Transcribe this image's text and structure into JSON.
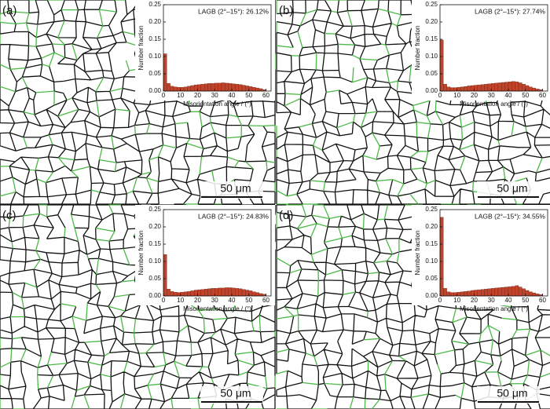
{
  "chart_data": [
    {
      "type": "histogram",
      "panel_label": "(a)",
      "annotation": "LAGB (2°–15°): 26.12%",
      "scale_bar": "50 μm",
      "xlabel": "Misorientation angle / (°)",
      "ylabel": "Number fraction",
      "color": "#c0432a",
      "bins": [
        0,
        2,
        4,
        6,
        8,
        10,
        12,
        14,
        16,
        18,
        20,
        22,
        24,
        26,
        28,
        30,
        32,
        34,
        36,
        38,
        40,
        42,
        44,
        46,
        48,
        50,
        52,
        54,
        56,
        58,
        60
      ],
      "counts": [
        0.108,
        0.022,
        0.014,
        0.012,
        0.011,
        0.011,
        0.012,
        0.014,
        0.016,
        0.018,
        0.019,
        0.02,
        0.021,
        0.022,
        0.022,
        0.023,
        0.023,
        0.024,
        0.023,
        0.022,
        0.021,
        0.02,
        0.019,
        0.017,
        0.015,
        0.013,
        0.011,
        0.009,
        0.007,
        0.004
      ],
      "xlim": [
        0,
        63
      ],
      "ylim": [
        0,
        0.25
      ],
      "xticks": [
        0,
        10,
        20,
        30,
        40,
        50,
        60
      ],
      "yticks": [
        {
          "value": 0,
          "label": "0.00"
        },
        {
          "value": 0.05,
          "label": "0.05"
        },
        {
          "value": 0.1,
          "label": "0.10"
        },
        {
          "value": 0.15,
          "label": "0.15"
        },
        {
          "value": 0.2,
          "label": "0.20"
        },
        {
          "value": 0.25,
          "label": "0.25"
        }
      ]
    },
    {
      "type": "histogram",
      "panel_label": "(b)",
      "annotation": "LAGB (2°–15°): 27.74%",
      "scale_bar": "50 μm",
      "xlabel": "Misorientation angle / (°)",
      "ylabel": "Number fraction",
      "color": "#c0432a",
      "bins": [
        0,
        2,
        4,
        6,
        8,
        10,
        12,
        14,
        16,
        18,
        20,
        22,
        24,
        26,
        28,
        30,
        32,
        34,
        36,
        38,
        40,
        42,
        44,
        46,
        48,
        50,
        52,
        54,
        56,
        58,
        60
      ],
      "counts": [
        0.148,
        0.02,
        0.012,
        0.01,
        0.01,
        0.011,
        0.012,
        0.013,
        0.015,
        0.016,
        0.017,
        0.018,
        0.019,
        0.02,
        0.021,
        0.022,
        0.023,
        0.024,
        0.025,
        0.026,
        0.027,
        0.028,
        0.027,
        0.024,
        0.02,
        0.016,
        0.012,
        0.009,
        0.006,
        0.004
      ],
      "xlim": [
        0,
        63
      ],
      "ylim": [
        0,
        0.25
      ],
      "xticks": [
        0,
        10,
        20,
        30,
        40,
        50,
        60
      ],
      "yticks": [
        {
          "value": 0,
          "label": "0.00"
        },
        {
          "value": 0.05,
          "label": "0.05"
        },
        {
          "value": 0.1,
          "label": "0.10"
        },
        {
          "value": 0.15,
          "label": "0.15"
        },
        {
          "value": 0.2,
          "label": "0.20"
        },
        {
          "value": 0.25,
          "label": "0.25"
        }
      ]
    },
    {
      "type": "histogram",
      "panel_label": "(c)",
      "annotation": "LAGB (2°–15°): 24.83%",
      "scale_bar": "50 μm",
      "xlabel": "Misorientation angle / (°)",
      "ylabel": "Number fraction",
      "color": "#c0432a",
      "bins": [
        0,
        2,
        4,
        6,
        8,
        10,
        12,
        14,
        16,
        18,
        20,
        22,
        24,
        26,
        28,
        30,
        32,
        34,
        36,
        38,
        40,
        42,
        44,
        46,
        48,
        50,
        52,
        54,
        56,
        58,
        60
      ],
      "counts": [
        0.12,
        0.02,
        0.013,
        0.011,
        0.01,
        0.011,
        0.012,
        0.013,
        0.015,
        0.017,
        0.018,
        0.019,
        0.02,
        0.021,
        0.022,
        0.022,
        0.023,
        0.023,
        0.024,
        0.024,
        0.023,
        0.022,
        0.021,
        0.019,
        0.017,
        0.015,
        0.012,
        0.01,
        0.007,
        0.005
      ],
      "xlim": [
        0,
        63
      ],
      "ylim": [
        0,
        0.25
      ],
      "xticks": [
        0,
        10,
        20,
        30,
        40,
        50,
        60
      ],
      "yticks": [
        {
          "value": 0,
          "label": "0.00"
        },
        {
          "value": 0.05,
          "label": "0.05"
        },
        {
          "value": 0.1,
          "label": "0.10"
        },
        {
          "value": 0.15,
          "label": "0.15"
        },
        {
          "value": 0.2,
          "label": "0.20"
        },
        {
          "value": 0.25,
          "label": "0.25"
        }
      ]
    },
    {
      "type": "histogram",
      "panel_label": "(d)",
      "annotation": "LAGB (2°–15°): 34.55%",
      "scale_bar": "50 μm",
      "xlabel": "Misorientation angle / (°)",
      "ylabel": "Number fraction",
      "color": "#c0432a",
      "bins": [
        0,
        2,
        4,
        6,
        8,
        10,
        12,
        14,
        16,
        18,
        20,
        22,
        24,
        26,
        28,
        30,
        32,
        34,
        36,
        38,
        40,
        42,
        44,
        46,
        48,
        50,
        52,
        54,
        56,
        58,
        60
      ],
      "counts": [
        0.228,
        0.022,
        0.012,
        0.01,
        0.01,
        0.011,
        0.012,
        0.013,
        0.014,
        0.016,
        0.017,
        0.018,
        0.019,
        0.02,
        0.021,
        0.022,
        0.023,
        0.024,
        0.025,
        0.026,
        0.027,
        0.028,
        0.03,
        0.026,
        0.021,
        0.016,
        0.012,
        0.009,
        0.006,
        0.004
      ],
      "xlim": [
        0,
        63
      ],
      "ylim": [
        0,
        0.25
      ],
      "xticks": [
        0,
        10,
        20,
        30,
        40,
        50,
        60
      ],
      "yticks": [
        {
          "value": 0,
          "label": "0.00"
        },
        {
          "value": 0.05,
          "label": "0.05"
        },
        {
          "value": 0.1,
          "label": "0.10"
        },
        {
          "value": 0.15,
          "label": "0.15"
        },
        {
          "value": 0.2,
          "label": "0.20"
        },
        {
          "value": 0.25,
          "label": "0.25"
        }
      ]
    }
  ]
}
